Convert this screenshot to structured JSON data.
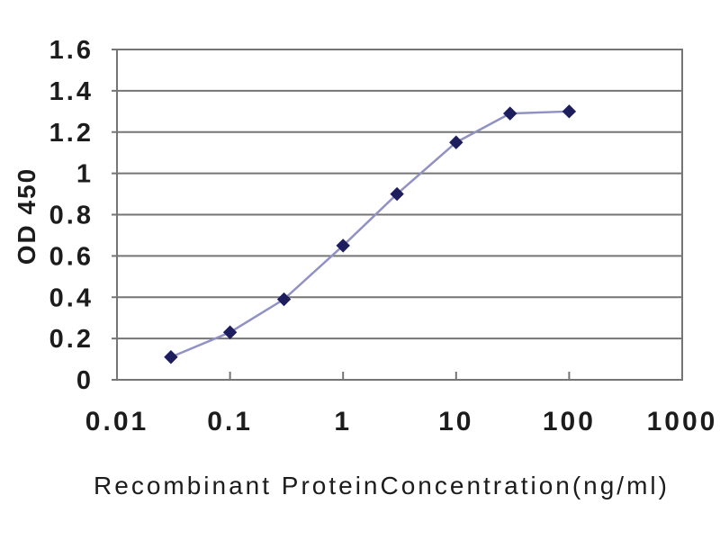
{
  "figure": {
    "background": "#ffffff"
  },
  "chart_data": {
    "type": "line",
    "title": "",
    "xlabel": "Recombinant ProteinConcentration(ng/ml)",
    "ylabel": "OD 450",
    "x_scale": "log",
    "xlim": [
      0.01,
      1000
    ],
    "ylim": [
      0,
      1.6
    ],
    "x": [
      0.03,
      0.1,
      0.3,
      1,
      3,
      10,
      30,
      100
    ],
    "values": [
      0.11,
      0.23,
      0.39,
      0.65,
      0.9,
      1.15,
      1.29,
      1.3
    ],
    "x_tick_labels": [
      "0.01",
      "0.1",
      "1",
      "10",
      "100",
      "1000"
    ],
    "x_tick_values": [
      0.01,
      0.1,
      1,
      10,
      100,
      1000
    ],
    "y_tick_labels": [
      "0",
      "0.2",
      "0.4",
      "0.6",
      "0.8",
      "1",
      "1.2",
      "1.4",
      "1.6"
    ],
    "y_tick_values": [
      0,
      0.2,
      0.4,
      0.6,
      0.8,
      1,
      1.2,
      1.4,
      1.6
    ],
    "grid": "horizontal",
    "legend": "none",
    "marker": "diamond",
    "colors": {
      "line": "#9191c4",
      "marker": "#1e1e5f",
      "grid": "#757575",
      "border": "#757575",
      "text": "#1c1c1c"
    }
  }
}
